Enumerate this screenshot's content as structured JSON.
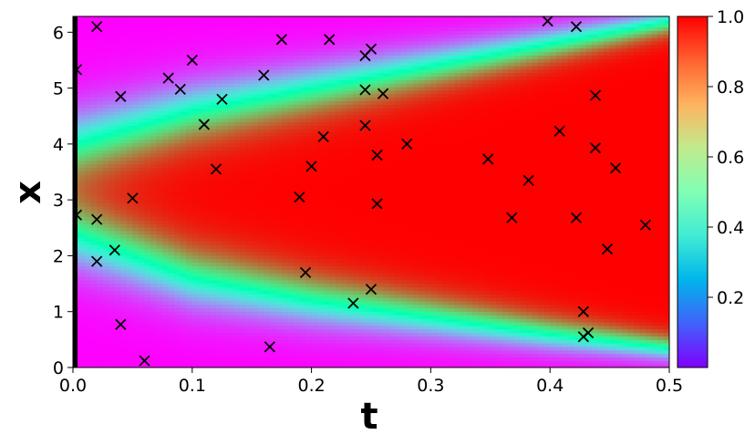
{
  "chart_data": {
    "type": "heatmap",
    "title": "",
    "xlabel": "t",
    "ylabel": "x",
    "xlim": [
      0.0,
      0.5
    ],
    "ylim": [
      0,
      6.283
    ],
    "x_ticks": [
      "0.0",
      "0.1",
      "0.2",
      "0.3",
      "0.4",
      "0.5"
    ],
    "x_tick_values": [
      0.0,
      0.1,
      0.2,
      0.3,
      0.4,
      0.5
    ],
    "y_ticks": [
      "0",
      "1",
      "2",
      "3",
      "4",
      "5",
      "6"
    ],
    "y_tick_values": [
      0,
      1,
      2,
      3,
      4,
      5,
      6
    ],
    "colormap": "rainbow",
    "colorbar": {
      "range": [
        0.0,
        1.0
      ],
      "ticks": [
        "0.2",
        "0.4",
        "0.6",
        "0.8",
        "1.0"
      ],
      "tick_values": [
        0.2,
        0.4,
        0.6,
        0.8,
        1.0
      ]
    },
    "field_description_points": {
      "t": [
        0.0,
        0.1,
        0.2,
        0.3,
        0.4,
        0.5
      ],
      "upper_boundary_x": [
        4.0,
        4.6,
        5.0,
        5.4,
        5.8,
        6.2
      ],
      "lower_boundary_x": [
        2.4,
        1.6,
        1.2,
        0.9,
        0.6,
        0.35
      ]
    },
    "scatter_series": {
      "name": "",
      "marker": "x",
      "color": "#000000",
      "points": [
        [
          0.003,
          5.33
        ],
        [
          0.003,
          2.73
        ],
        [
          0.02,
          6.1
        ],
        [
          0.02,
          2.65
        ],
        [
          0.02,
          1.9
        ],
        [
          0.035,
          2.1
        ],
        [
          0.04,
          4.85
        ],
        [
          0.04,
          0.77
        ],
        [
          0.05,
          3.03
        ],
        [
          0.06,
          0.12
        ],
        [
          0.08,
          5.18
        ],
        [
          0.09,
          4.98
        ],
        [
          0.1,
          5.5
        ],
        [
          0.11,
          4.35
        ],
        [
          0.12,
          3.55
        ],
        [
          0.125,
          4.8
        ],
        [
          0.16,
          5.23
        ],
        [
          0.165,
          0.37
        ],
        [
          0.175,
          5.87
        ],
        [
          0.19,
          3.05
        ],
        [
          0.195,
          1.7
        ],
        [
          0.2,
          3.6
        ],
        [
          0.21,
          4.13
        ],
        [
          0.215,
          5.87
        ],
        [
          0.235,
          1.15
        ],
        [
          0.245,
          5.58
        ],
        [
          0.245,
          4.97
        ],
        [
          0.245,
          4.33
        ],
        [
          0.25,
          5.7
        ],
        [
          0.25,
          1.4
        ],
        [
          0.255,
          3.8
        ],
        [
          0.255,
          2.93
        ],
        [
          0.26,
          4.9
        ],
        [
          0.28,
          4.0
        ],
        [
          0.348,
          3.73
        ],
        [
          0.368,
          2.68
        ],
        [
          0.382,
          3.35
        ],
        [
          0.398,
          6.2
        ],
        [
          0.408,
          4.23
        ],
        [
          0.422,
          6.1
        ],
        [
          0.422,
          2.68
        ],
        [
          0.428,
          1.0
        ],
        [
          0.428,
          0.55
        ],
        [
          0.432,
          0.62
        ],
        [
          0.438,
          4.87
        ],
        [
          0.438,
          3.93
        ],
        [
          0.448,
          2.12
        ],
        [
          0.455,
          3.57
        ],
        [
          0.48,
          2.55
        ]
      ]
    },
    "domain_edge_marker_color": "#000000"
  }
}
